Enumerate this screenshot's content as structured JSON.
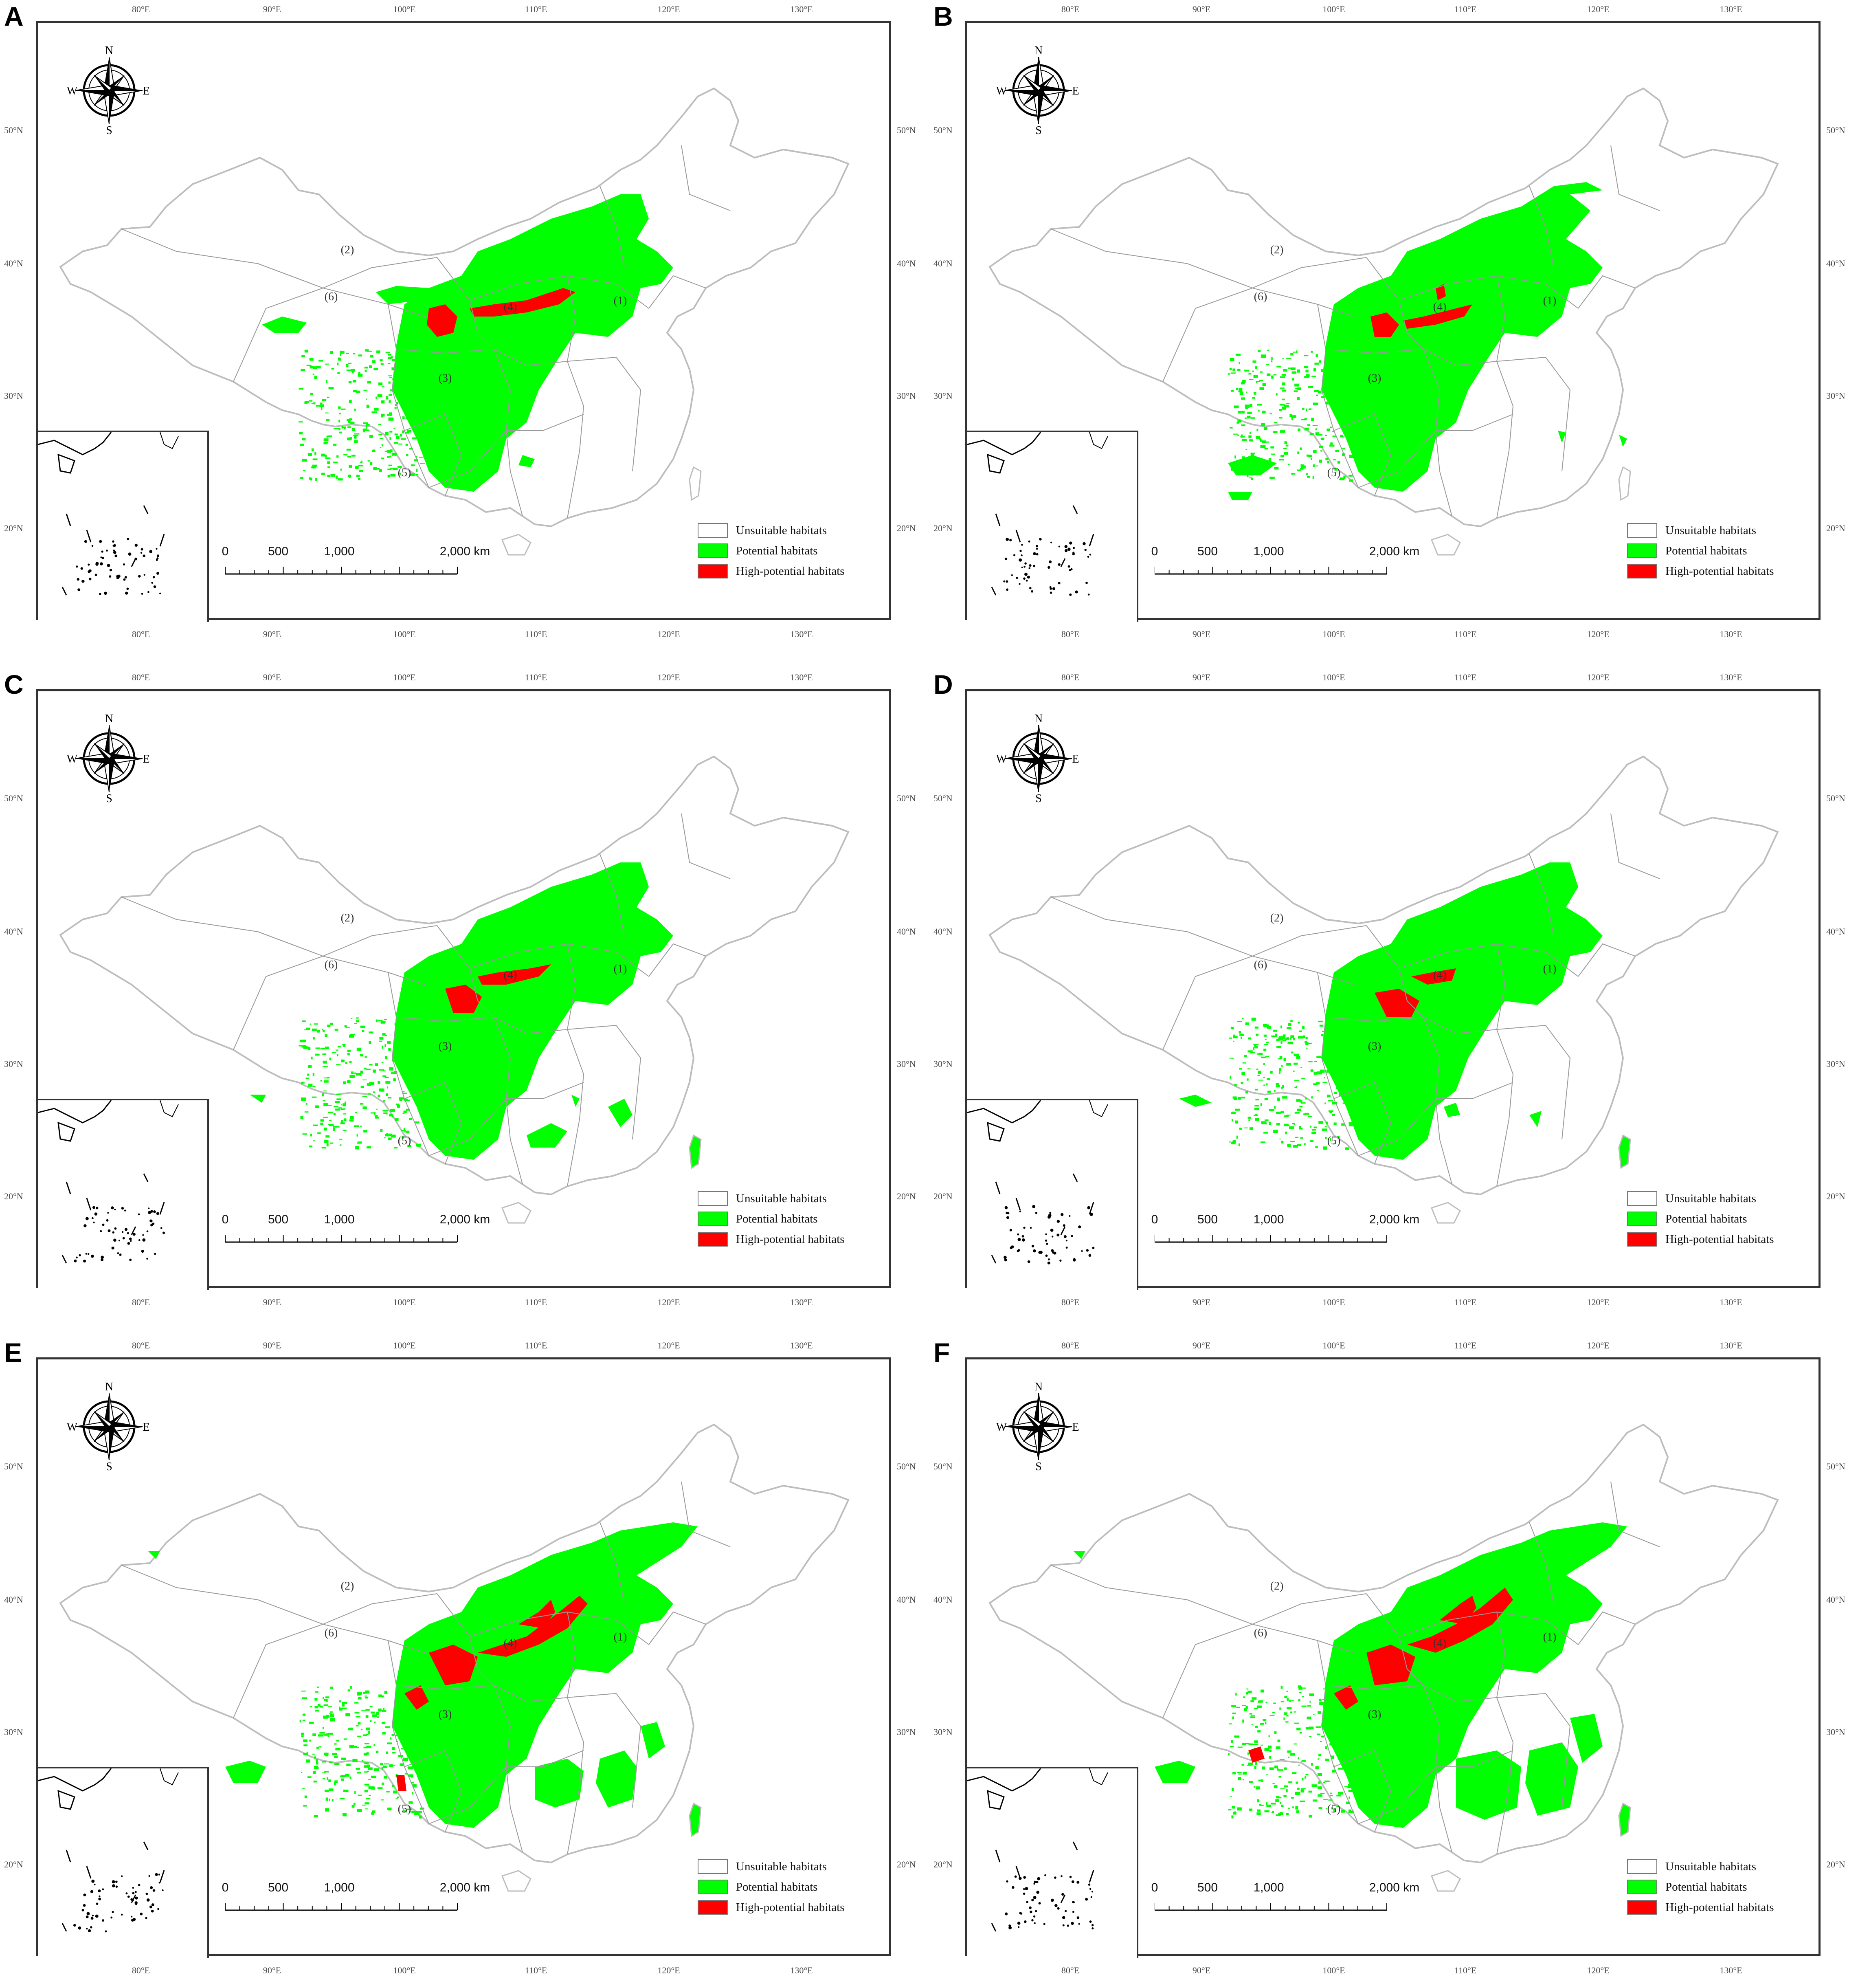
{
  "panels": [
    {
      "letter": "A",
      "variant": 0
    },
    {
      "letter": "B",
      "variant": 1
    },
    {
      "letter": "C",
      "variant": 2
    },
    {
      "letter": "D",
      "variant": 3
    },
    {
      "letter": "E",
      "variant": 4
    },
    {
      "letter": "F",
      "variant": 5
    }
  ],
  "axes": {
    "lon_ticks": [
      "80°E",
      "90°E",
      "100°E",
      "110°E",
      "120°E",
      "130°E"
    ],
    "lat_ticks": [
      "50°N",
      "40°N",
      "30°N",
      "20°N"
    ]
  },
  "compass": {
    "n": "N",
    "s": "S",
    "e": "E",
    "w": "W"
  },
  "legend": [
    {
      "label": "Unsuitable habitats",
      "color": "#ffffff"
    },
    {
      "label": "Potential habitats",
      "color": "#00ff00"
    },
    {
      "label": "High-potential habitats",
      "color": "#ff0000"
    }
  ],
  "scale_bar": {
    "labels": [
      "0",
      "500",
      "1,000",
      "2,000 km"
    ]
  },
  "regions": [
    "(1)",
    "(2)",
    "(3)",
    "(4)",
    "(5)",
    "(6)"
  ],
  "colors": {
    "potential": "#00ff00",
    "high": "#ff0000",
    "border": "#bdbdbd",
    "frame": "#333333"
  }
}
